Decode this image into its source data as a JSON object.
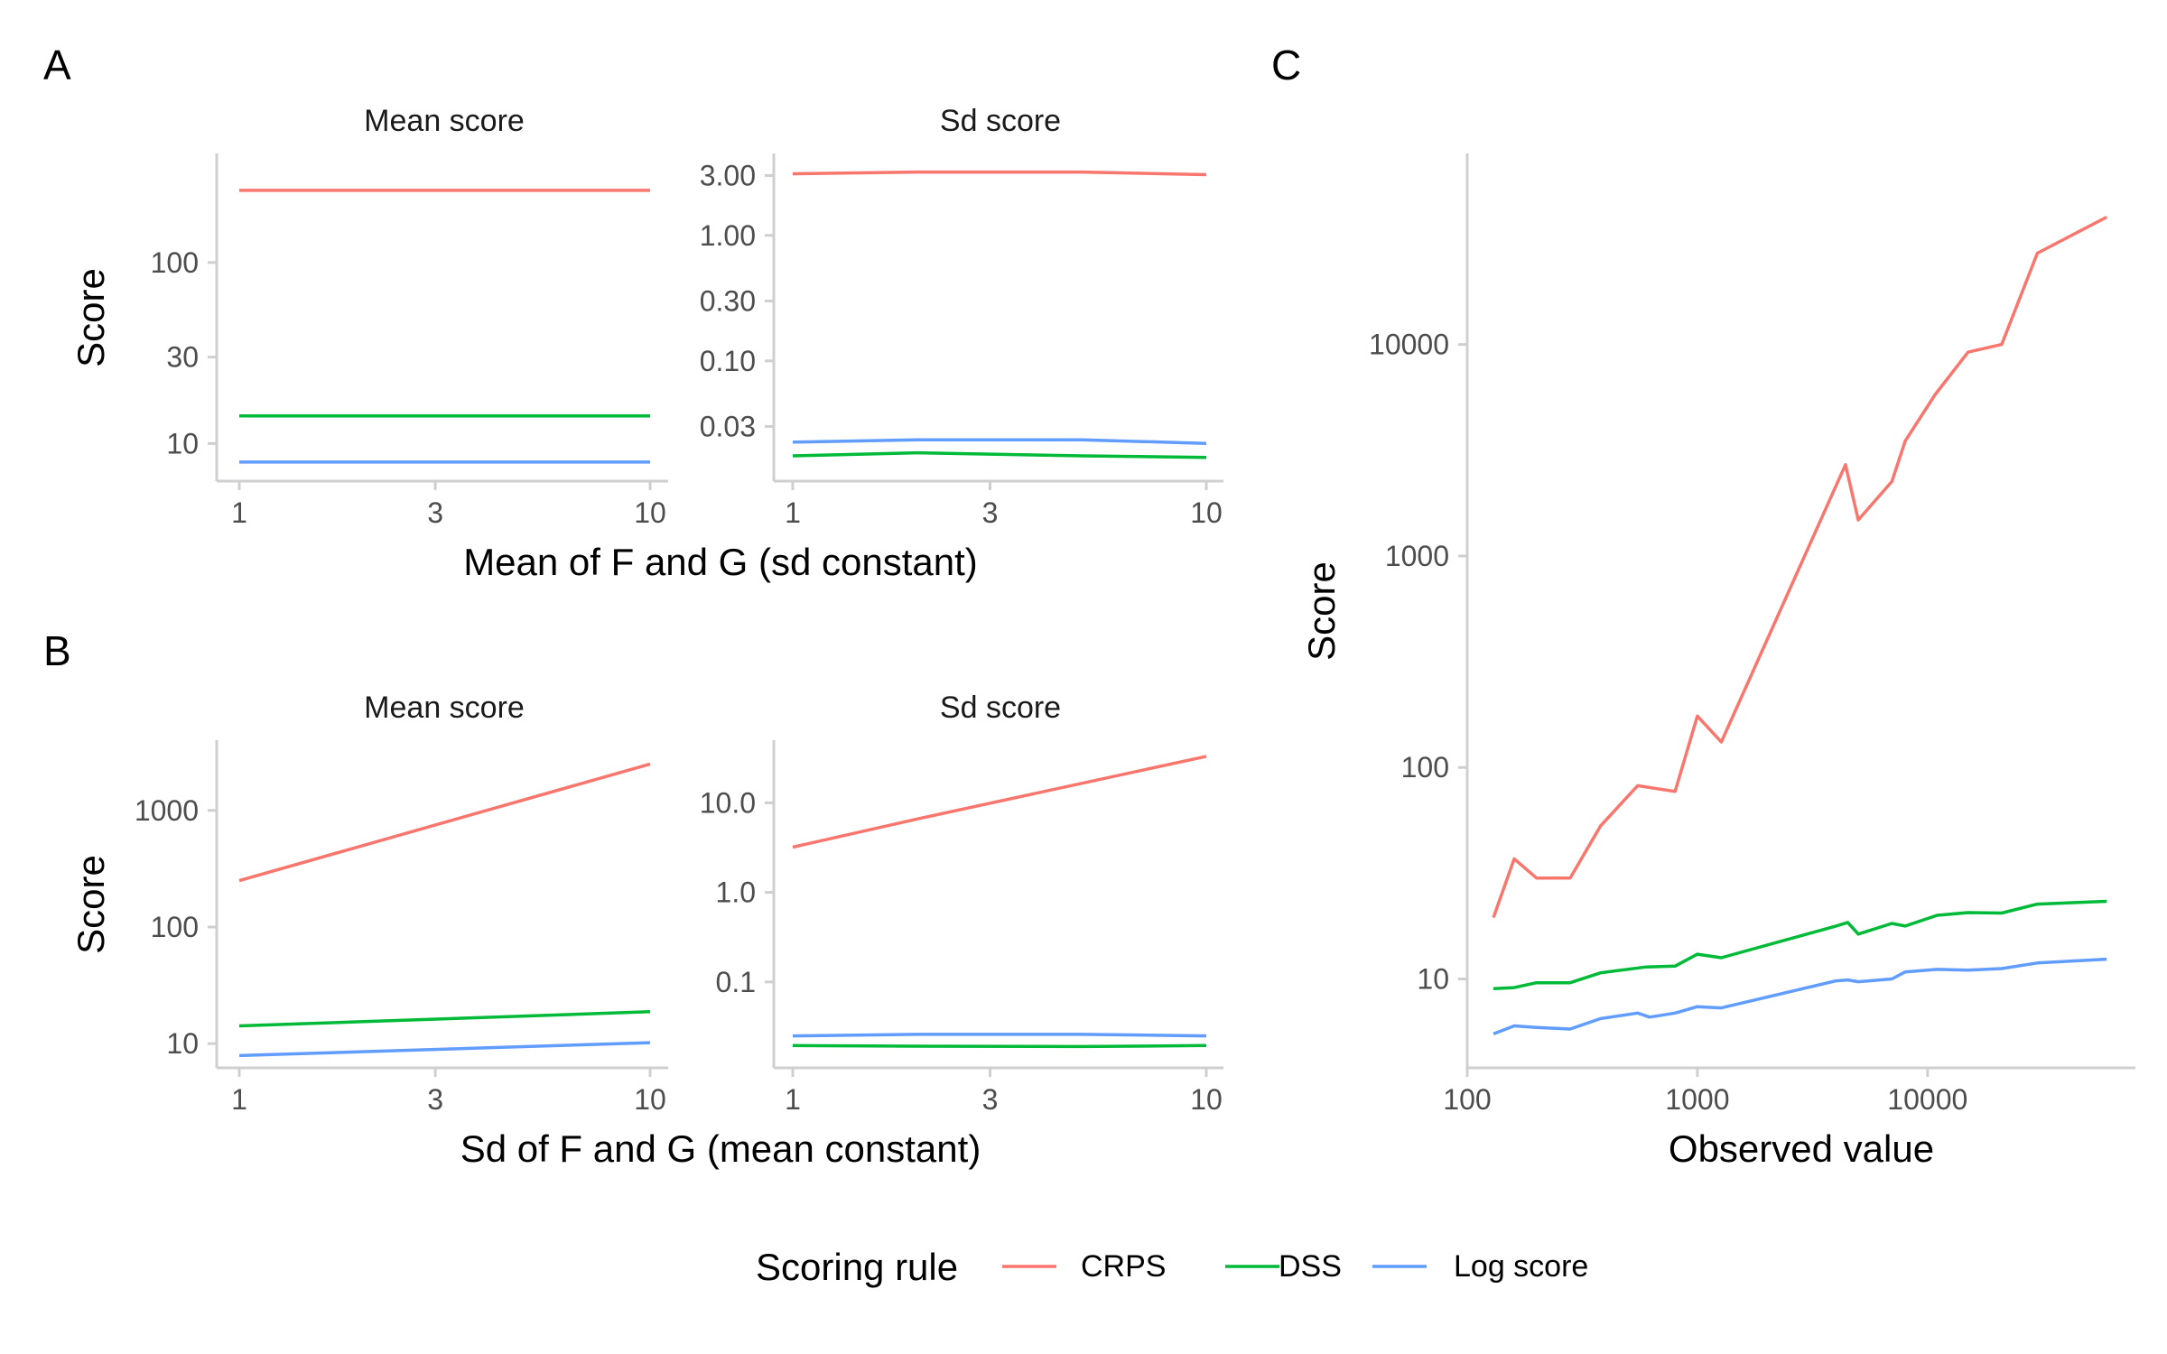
{
  "series_styles": [
    {
      "name": "CRPS",
      "color": "#F8766D"
    },
    {
      "name": "DSS",
      "color": "#00BA38"
    },
    {
      "name": "Log score",
      "color": "#619CFF"
    }
  ],
  "legend": {
    "title": "Scoring rule",
    "items": [
      "CRPS",
      "DSS",
      "Log score"
    ],
    "placement": "bottom"
  },
  "panels": {
    "A": {
      "tag": "A",
      "xlabel": "Mean of F and G (sd constant)",
      "ylabel": "Score"
    },
    "B": {
      "tag": "B",
      "xlabel": "Sd of F and G (mean constant)",
      "ylabel": "Score"
    },
    "C": {
      "tag": "C",
      "xlabel": "Observed value",
      "ylabel": "Score"
    }
  },
  "chart_data": [
    {
      "type": "line",
      "panel": "A",
      "facet": "Mean score",
      "xscale": "log",
      "yscale": "log",
      "xlim": [
        1,
        10
      ],
      "ylim": [
        6.2,
        400
      ],
      "xticks": [
        1,
        3,
        10
      ],
      "xtick_labels": [
        "1",
        "3",
        "10"
      ],
      "yticks": [
        10,
        30,
        100
      ],
      "ytick_labels": [
        "10",
        "30",
        "100"
      ],
      "grid": false,
      "series": [
        {
          "name": "CRPS",
          "x": [
            1,
            10
          ],
          "y": [
            250,
            250
          ]
        },
        {
          "name": "DSS",
          "x": [
            1,
            10
          ],
          "y": [
            14.2,
            14.2
          ]
        },
        {
          "name": "Log score",
          "x": [
            1,
            10
          ],
          "y": [
            7.9,
            7.9
          ]
        }
      ]
    },
    {
      "type": "line",
      "panel": "A",
      "facet": "Sd score",
      "xscale": "log",
      "yscale": "log",
      "xlim": [
        1,
        10
      ],
      "ylim": [
        0.011,
        4.5
      ],
      "xticks": [
        1,
        3,
        10
      ],
      "xtick_labels": [
        "1",
        "3",
        "10"
      ],
      "yticks": [
        0.03,
        0.1,
        0.3,
        1,
        3
      ],
      "ytick_labels": [
        "0.03",
        "0.10",
        "0.30",
        "1.00",
        "3.00"
      ],
      "grid": false,
      "series": [
        {
          "name": "CRPS",
          "x": [
            1,
            2,
            5,
            10
          ],
          "y": [
            3.1,
            3.2,
            3.2,
            3.05
          ]
        },
        {
          "name": "DSS",
          "x": [
            1,
            2,
            5,
            10
          ],
          "y": [
            0.0175,
            0.0185,
            0.0175,
            0.017
          ]
        },
        {
          "name": "Log score",
          "x": [
            1,
            2,
            5,
            10
          ],
          "y": [
            0.0225,
            0.0235,
            0.0235,
            0.022
          ]
        }
      ]
    },
    {
      "type": "line",
      "panel": "B",
      "facet": "Mean score",
      "xscale": "log",
      "yscale": "log",
      "xlim": [
        1,
        10
      ],
      "ylim": [
        6.2,
        4000
      ],
      "xticks": [
        1,
        3,
        10
      ],
      "xtick_labels": [
        "1",
        "3",
        "10"
      ],
      "yticks": [
        10,
        100,
        1000
      ],
      "ytick_labels": [
        "10",
        "100",
        "1000"
      ],
      "grid": false,
      "series": [
        {
          "name": "CRPS",
          "x": [
            1,
            10
          ],
          "y": [
            250,
            2500
          ]
        },
        {
          "name": "DSS",
          "x": [
            1,
            10
          ],
          "y": [
            14.2,
            18.8
          ]
        },
        {
          "name": "Log score",
          "x": [
            1,
            10
          ],
          "y": [
            7.9,
            10.2
          ]
        }
      ]
    },
    {
      "type": "line",
      "panel": "B",
      "facet": "Sd score",
      "xscale": "log",
      "yscale": "log",
      "xlim": [
        1,
        10
      ],
      "ylim": [
        0.011,
        50
      ],
      "xticks": [
        1,
        3,
        10
      ],
      "xtick_labels": [
        "1",
        "3",
        "10"
      ],
      "yticks": [
        0.1,
        1,
        10
      ],
      "ytick_labels": [
        "0.1",
        "1.0",
        "10.0"
      ],
      "grid": false,
      "series": [
        {
          "name": "CRPS",
          "x": [
            1,
            2,
            10
          ],
          "y": [
            3.2,
            6.6,
            33
          ]
        },
        {
          "name": "DSS",
          "x": [
            1,
            2,
            5,
            10
          ],
          "y": [
            0.0195,
            0.0192,
            0.019,
            0.0195
          ]
        },
        {
          "name": "Log score",
          "x": [
            1,
            2,
            5,
            10
          ],
          "y": [
            0.025,
            0.026,
            0.026,
            0.025
          ]
        }
      ]
    },
    {
      "type": "line",
      "panel": "C",
      "xscale": "log",
      "yscale": "log",
      "xlim": [
        100,
        80000
      ],
      "ylim": [
        3.8,
        80000
      ],
      "xticks": [
        100,
        1000,
        10000
      ],
      "xtick_labels": [
        "100",
        "1000",
        "10000"
      ],
      "yticks": [
        10,
        100,
        1000,
        10000
      ],
      "ytick_labels": [
        "10",
        "100",
        "1000",
        "10000"
      ],
      "grid": false,
      "series": [
        {
          "name": "CRPS",
          "x": [
            130,
            160,
            200,
            280,
            380,
            550,
            800,
            1000,
            1270,
            4400,
            5000,
            7000,
            8000,
            10800,
            15000,
            21000,
            30000,
            60000
          ],
          "y": [
            19.5,
            37,
            30,
            30,
            53,
            82,
            77,
            175,
            132,
            2700,
            1480,
            2250,
            3500,
            5800,
            9200,
            10000,
            27000,
            40000
          ]
        },
        {
          "name": "DSS",
          "x": [
            130,
            160,
            200,
            280,
            380,
            600,
            800,
            1000,
            1270,
            4000,
            4500,
            5000,
            7000,
            8000,
            11000,
            15000,
            21000,
            30000,
            60000
          ],
          "y": [
            9.0,
            9.1,
            9.6,
            9.6,
            10.7,
            11.4,
            11.5,
            13.1,
            12.6,
            17.8,
            18.5,
            16.3,
            18.3,
            17.8,
            20.0,
            20.6,
            20.5,
            22.6,
            23.3
          ]
        },
        {
          "name": "Log score",
          "x": [
            130,
            160,
            200,
            280,
            380,
            550,
            620,
            800,
            1000,
            1270,
            4000,
            4500,
            5000,
            7000,
            8000,
            11000,
            15000,
            21000,
            30000,
            60000
          ],
          "y": [
            5.5,
            6.0,
            5.9,
            5.8,
            6.5,
            6.9,
            6.6,
            6.9,
            7.4,
            7.3,
            9.8,
            9.9,
            9.7,
            10.0,
            10.8,
            11.1,
            11.0,
            11.2,
            11.9,
            12.4
          ]
        }
      ]
    }
  ]
}
